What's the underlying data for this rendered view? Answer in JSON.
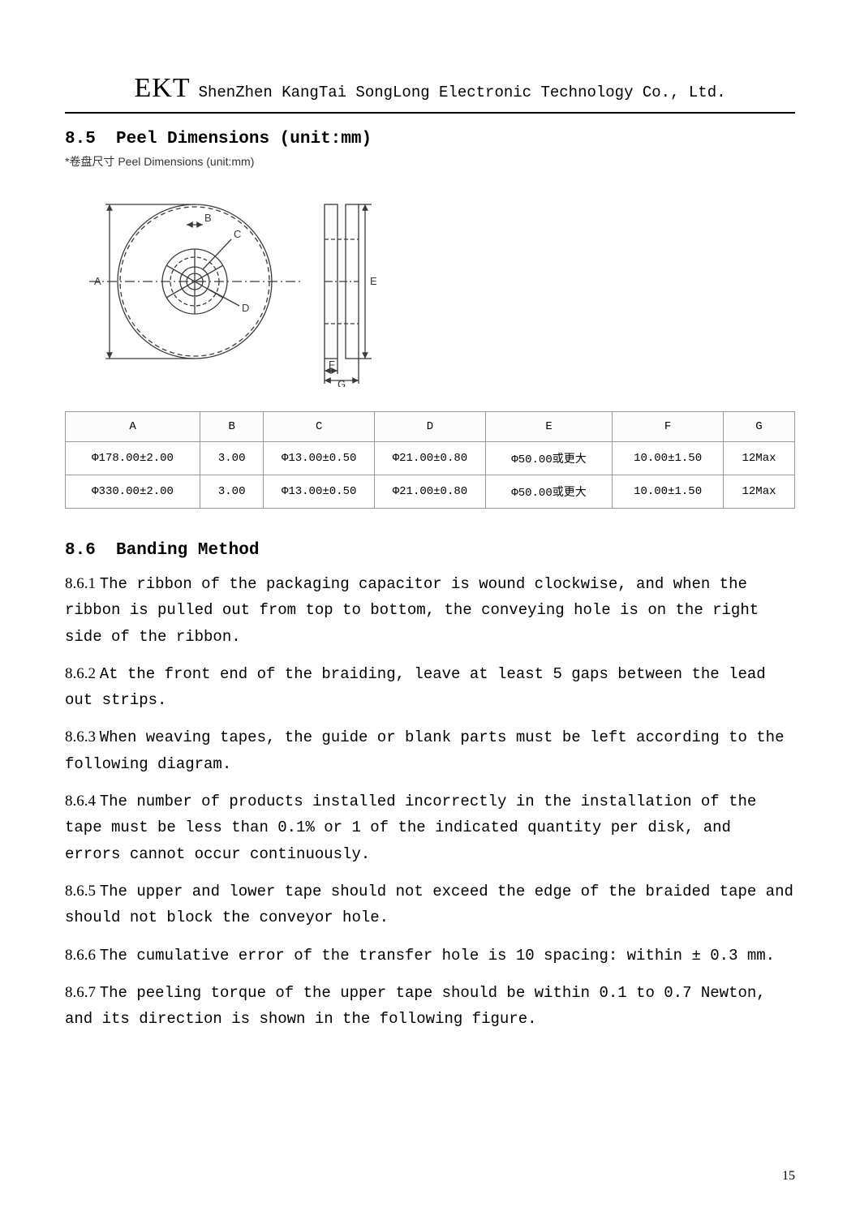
{
  "header": {
    "logo": "EKT",
    "company": "ShenZhen KangTai SongLong Electronic Technology Co., Ltd."
  },
  "section85": {
    "number": "8.5",
    "title": "Peel Dimensions (unit:mm)",
    "caption": "*卷盘尺寸 Peel Dimensions   (unit:mm)",
    "diagram_labels": {
      "A": "A",
      "B": "B",
      "C": "C",
      "D": "D",
      "E": "E",
      "F": "F",
      "G": "G"
    },
    "table": {
      "columns": [
        "A",
        "B",
        "C",
        "D",
        "E",
        "F",
        "G"
      ],
      "rows": [
        [
          "Φ178.00±2.00",
          "3.00",
          "Φ13.00±0.50",
          "Φ21.00±0.80",
          "Φ50.00或更大",
          "10.00±1.50",
          "12Max"
        ],
        [
          "Φ330.00±2.00",
          "3.00",
          "Φ13.00±0.50",
          "Φ21.00±0.80",
          "Φ50.00或更大",
          "10.00±1.50",
          "12Max"
        ]
      ],
      "col_widths_pct": [
        17,
        8,
        14,
        14,
        16,
        14,
        9
      ]
    }
  },
  "section86": {
    "number": "8.6",
    "title": "Banding Method",
    "items": [
      {
        "n": "8.6.1",
        "t": "The ribbon of the packaging capacitor is wound clockwise, and when the ribbon is pulled out from top to bottom, the conveying hole is on the right side of the ribbon."
      },
      {
        "n": "8.6.2",
        "t": "At the front end of the braiding, leave at least 5 gaps between the lead out strips."
      },
      {
        "n": "8.6.3",
        "t": "When weaving tapes, the guide or blank parts must be left according to the following diagram."
      },
      {
        "n": "8.6.4",
        "t": "The number of products installed incorrectly in the installation of the tape must be less than 0.1% or 1 of the indicated quantity per disk, and errors cannot occur continuously."
      },
      {
        "n": "8.6.5",
        "t": "The upper and lower tape should not exceed the edge of the braided tape and should not block the conveyor hole."
      },
      {
        "n": "8.6.6",
        "t": "The cumulative error of the transfer hole is 10 spacing: within ± 0.3 mm."
      },
      {
        "n": "8.6.7",
        "t": "The peeling torque of the upper tape should be within 0.1 to 0.7 Newton, and its direction is shown in the following figure."
      }
    ]
  },
  "page_number": "15",
  "colors": {
    "line": "#3a3a3a",
    "text": "#000000",
    "border": "#999999"
  }
}
